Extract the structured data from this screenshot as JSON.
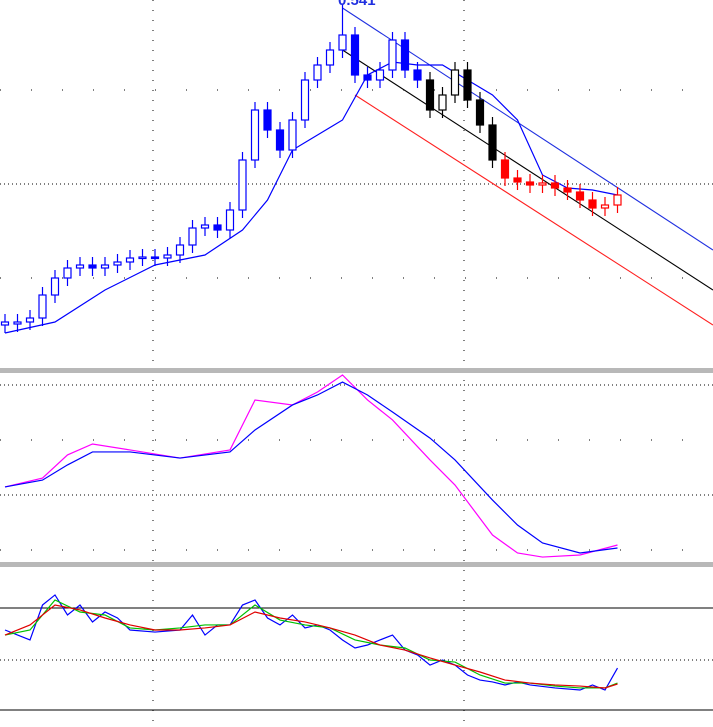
{
  "chart_data": [
    {
      "type": "candlestick",
      "annotation": "0.541",
      "xlim": [
        -0.4,
        56.64
      ],
      "ylim": [
        0.18,
        0.545
      ],
      "candles": {
        "x": [
          0,
          1,
          2,
          3,
          4,
          5,
          6,
          7,
          8,
          9,
          10,
          11,
          12,
          13,
          14,
          15,
          16,
          17,
          18,
          19,
          20,
          21,
          22,
          23,
          24,
          25,
          26,
          27,
          28,
          29,
          30,
          31,
          32,
          33,
          34,
          35,
          36,
          37,
          38,
          39,
          40,
          41,
          42,
          43,
          44,
          45,
          46,
          47,
          48,
          49
        ],
        "open": [
          0.22,
          0.221,
          0.223,
          0.227,
          0.25,
          0.267,
          0.277,
          0.28,
          0.277,
          0.28,
          0.283,
          0.287,
          0.288,
          0.287,
          0.29,
          0.3,
          0.317,
          0.32,
          0.315,
          0.335,
          0.385,
          0.435,
          0.415,
          0.395,
          0.425,
          0.465,
          0.48,
          0.495,
          0.51,
          0.47,
          0.465,
          0.475,
          0.505,
          0.475,
          0.465,
          0.435,
          0.45,
          0.475,
          0.445,
          0.42,
          0.385,
          0.367,
          0.363,
          0.36,
          0.362,
          0.357,
          0.353,
          0.345,
          0.337,
          0.34
        ],
        "high": [
          0.231,
          0.231,
          0.235,
          0.258,
          0.275,
          0.285,
          0.288,
          0.288,
          0.288,
          0.291,
          0.295,
          0.296,
          0.296,
          0.298,
          0.308,
          0.325,
          0.328,
          0.328,
          0.343,
          0.393,
          0.443,
          0.443,
          0.423,
          0.433,
          0.473,
          0.488,
          0.503,
          0.541,
          0.518,
          0.478,
          0.483,
          0.513,
          0.513,
          0.483,
          0.473,
          0.458,
          0.483,
          0.483,
          0.453,
          0.428,
          0.393,
          0.375,
          0.371,
          0.37,
          0.37,
          0.365,
          0.361,
          0.353,
          0.348,
          0.358
        ],
        "low": [
          0.212,
          0.213,
          0.215,
          0.219,
          0.242,
          0.259,
          0.269,
          0.269,
          0.269,
          0.272,
          0.275,
          0.279,
          0.279,
          0.279,
          0.282,
          0.292,
          0.309,
          0.307,
          0.307,
          0.327,
          0.377,
          0.407,
          0.387,
          0.387,
          0.417,
          0.457,
          0.472,
          0.487,
          0.462,
          0.457,
          0.457,
          0.467,
          0.467,
          0.457,
          0.427,
          0.427,
          0.442,
          0.437,
          0.412,
          0.377,
          0.359,
          0.355,
          0.352,
          0.352,
          0.349,
          0.345,
          0.337,
          0.329,
          0.329,
          0.332
        ],
        "close": [
          0.223,
          0.223,
          0.227,
          0.25,
          0.267,
          0.277,
          0.28,
          0.277,
          0.28,
          0.283,
          0.287,
          0.288,
          0.287,
          0.29,
          0.3,
          0.317,
          0.32,
          0.315,
          0.335,
          0.385,
          0.435,
          0.415,
          0.395,
          0.425,
          0.465,
          0.48,
          0.495,
          0.51,
          0.47,
          0.465,
          0.475,
          0.505,
          0.475,
          0.465,
          0.435,
          0.45,
          0.475,
          0.445,
          0.42,
          0.385,
          0.367,
          0.363,
          0.36,
          0.362,
          0.357,
          0.353,
          0.345,
          0.337,
          0.34,
          0.35
        ]
      },
      "color_ranges": [
        {
          "start": 0,
          "color": "#0000ff"
        },
        {
          "start": 34,
          "color": "#000000"
        },
        {
          "start": 40,
          "color": "#ff0000"
        }
      ],
      "series": [
        {
          "color": "#0000ff",
          "x": [
            0,
            4,
            8,
            12,
            16,
            19,
            21,
            23,
            25,
            27,
            29,
            31,
            33,
            35,
            37,
            39,
            41,
            43,
            45,
            47,
            49
          ],
          "values": [
            0.212,
            0.223,
            0.255,
            0.28,
            0.29,
            0.315,
            0.345,
            0.395,
            0.41,
            0.425,
            0.47,
            0.483,
            0.48,
            0.48,
            0.465,
            0.45,
            0.425,
            0.37,
            0.357,
            0.355,
            0.35
          ]
        }
      ],
      "trend_lines": [
        {
          "color": "#2030e0",
          "x": [
            27,
            56.64
          ],
          "values": [
            0.537,
            0.295
          ]
        },
        {
          "color": "#000000",
          "x": [
            27,
            56.64
          ],
          "values": [
            0.495,
            0.255
          ]
        },
        {
          "color": "#ff2020",
          "x": [
            28,
            56.64
          ],
          "values": [
            0.45,
            0.22
          ]
        }
      ]
    },
    {
      "type": "line",
      "xlim": [
        -0.4,
        56.64
      ],
      "ylim": [
        0,
        100
      ],
      "series": [
        {
          "color": "#ff00ff",
          "x": [
            0,
            3,
            5,
            7,
            10,
            14,
            18,
            20,
            23,
            25,
            27,
            29,
            31,
            34,
            36,
            39,
            41,
            43,
            46,
            49
          ],
          "values": [
            39.5,
            44.3,
            56.8,
            62.7,
            59.5,
            55.1,
            59.5,
            86.5,
            83.8,
            90.8,
            100,
            86.5,
            75.7,
            54.1,
            40.5,
            13.5,
            3.8,
            1.6,
            2.7,
            8.1
          ]
        },
        {
          "color": "#0000ff",
          "x": [
            0,
            3,
            5,
            7,
            10,
            14,
            18,
            20,
            23,
            25,
            27,
            29,
            31,
            34,
            36,
            39,
            41,
            43,
            46,
            49
          ],
          "values": [
            39.5,
            43.2,
            51.4,
            58.4,
            58.4,
            55.1,
            58.4,
            70.3,
            83.8,
            89.2,
            96.2,
            89.2,
            80.0,
            65.9,
            54.1,
            32.4,
            18.9,
            9.2,
            3.8,
            6.5
          ]
        }
      ]
    },
    {
      "type": "line",
      "xlim": [
        -0.4,
        56.64
      ],
      "ylim": [
        0,
        125
      ],
      "series": [
        {
          "color": "#0000ff",
          "x": [
            0,
            2,
            3,
            4,
            5,
            6,
            7,
            8,
            9,
            10,
            12,
            14,
            15,
            16,
            17,
            18,
            19,
            20,
            21,
            22,
            23,
            24,
            25,
            26,
            27,
            28,
            29,
            30,
            31,
            32,
            33,
            34,
            35,
            36,
            37,
            38,
            39,
            40,
            41,
            42,
            44,
            46,
            47,
            48,
            49
          ],
          "values": [
            75.0,
            66.7,
            95.8,
            104.2,
            87.5,
            95.8,
            81.7,
            90.0,
            85.0,
            75.0,
            73.3,
            75.0,
            87.5,
            70.8,
            79.2,
            79.2,
            95.8,
            100.0,
            85.0,
            79.2,
            87.5,
            76.7,
            79.2,
            75.0,
            66.7,
            60.0,
            62.5,
            66.7,
            70.8,
            58.3,
            54.2,
            45.8,
            50.0,
            45.8,
            37.5,
            33.3,
            31.7,
            29.2,
            31.7,
            29.2,
            26.7,
            25.0,
            29.2,
            25.0,
            43.3
          ]
        },
        {
          "color": "#00c000",
          "x": [
            0,
            2,
            4,
            6,
            8,
            10,
            12,
            14,
            16,
            18,
            20,
            22,
            24,
            26,
            28,
            30,
            32,
            34,
            36,
            38,
            40,
            42,
            44,
            46,
            48,
            49
          ],
          "values": [
            70.8,
            75.0,
            100.0,
            90.0,
            87.5,
            76.7,
            75.0,
            76.7,
            79.2,
            79.2,
            95.8,
            83.3,
            79.2,
            76.7,
            66.7,
            62.5,
            60.0,
            50.0,
            48.3,
            37.5,
            30.8,
            30.8,
            28.3,
            26.7,
            26.7,
            30.8
          ]
        },
        {
          "color": "#e00000",
          "x": [
            0,
            2,
            4,
            6,
            8,
            10,
            12,
            14,
            16,
            18,
            20,
            22,
            24,
            26,
            28,
            30,
            32,
            34,
            36,
            38,
            40,
            42,
            44,
            46,
            48,
            49
          ],
          "values": [
            70.8,
            79.2,
            95.8,
            91.7,
            85.0,
            79.2,
            75.0,
            75.0,
            76.7,
            79.2,
            90.0,
            85.0,
            81.7,
            76.7,
            70.8,
            62.5,
            58.3,
            51.7,
            45.8,
            40.0,
            33.3,
            30.8,
            29.2,
            28.3,
            26.7,
            30.0
          ]
        }
      ]
    }
  ]
}
